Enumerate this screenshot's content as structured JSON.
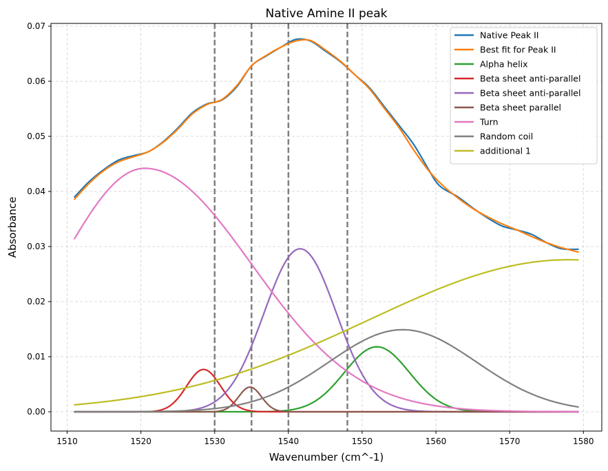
{
  "chart_data": {
    "type": "line",
    "title": "Native Amine II peak",
    "xlabel": "Wavenumber (cm^-1)",
    "ylabel": "Absorbance",
    "xlim": [
      1507.8,
      1582.5
    ],
    "ylim": [
      -0.0035,
      0.0705
    ],
    "xticks": [
      1510,
      1520,
      1530,
      1540,
      1550,
      1560,
      1570,
      1580
    ],
    "yticks": [
      0.0,
      0.01,
      0.02,
      0.03,
      0.04,
      0.05,
      0.06,
      0.07
    ],
    "ytick_labels": [
      "0.00",
      "0.01",
      "0.02",
      "0.03",
      "0.04",
      "0.05",
      "0.06",
      "0.07"
    ],
    "grid": true,
    "legend_position": "top-right",
    "vlines": [
      1530,
      1535,
      1540,
      1548
    ],
    "vline_color": "#7f7f7f",
    "series": [
      {
        "name": "Native Peak II",
        "color": "#1f77b4",
        "x": [
          1511,
          1513,
          1515,
          1517,
          1519,
          1521,
          1523,
          1525,
          1527,
          1529,
          1531,
          1533,
          1535,
          1537,
          1539,
          1541,
          1543,
          1545,
          1547,
          1549,
          1551,
          1553,
          1555,
          1557,
          1559,
          1560,
          1561,
          1563,
          1565,
          1567,
          1569,
          1571,
          1573,
          1575,
          1577,
          1579.3
        ],
        "y": [
          0.039,
          0.0418,
          0.044,
          0.0457,
          0.0465,
          0.0472,
          0.049,
          0.0515,
          0.0543,
          0.0559,
          0.0566,
          0.059,
          0.0628,
          0.0646,
          0.0662,
          0.0676,
          0.0673,
          0.0655,
          0.0636,
          0.0612,
          0.0588,
          0.0554,
          0.052,
          0.0485,
          0.044,
          0.0418,
          0.0405,
          0.039,
          0.037,
          0.0352,
          0.0337,
          0.033,
          0.0322,
          0.0307,
          0.0296,
          0.0295
        ]
      },
      {
        "name": "Best fit for Peak II",
        "color": "#ff7f0e",
        "x": [
          1511,
          1513,
          1515,
          1517,
          1519,
          1521,
          1523,
          1525,
          1527,
          1529,
          1531,
          1533,
          1535,
          1537,
          1539,
          1541,
          1543,
          1545,
          1547,
          1549,
          1551,
          1553,
          1555,
          1557,
          1559,
          1561,
          1563,
          1565,
          1567,
          1569,
          1571,
          1573,
          1575,
          1577,
          1579.3
        ],
        "y": [
          0.0386,
          0.0415,
          0.0438,
          0.0454,
          0.0463,
          0.0472,
          0.0489,
          0.0513,
          0.0541,
          0.0558,
          0.0567,
          0.0592,
          0.0628,
          0.0647,
          0.0662,
          0.0673,
          0.0674,
          0.0657,
          0.0637,
          0.0612,
          0.0586,
          0.0551,
          0.0516,
          0.0475,
          0.0438,
          0.041,
          0.0388,
          0.0369,
          0.0354,
          0.0341,
          0.033,
          0.0318,
          0.0307,
          0.0298,
          0.029
        ]
      },
      {
        "name": "Alpha helix",
        "color": "#2ca02c",
        "model": {
          "a": 0.0118,
          "c": 1552.0,
          "s": 4.4
        },
        "y_peak": 0.0118
      },
      {
        "name": "Beta sheet anti-parallel",
        "color": "#d62728",
        "model": {
          "a": 0.0077,
          "c": 1528.5,
          "s": 2.3
        },
        "y_peak": 0.0077
      },
      {
        "name": "Beta sheet anti-parallel",
        "color": "#9467bd",
        "model": {
          "a": 0.0296,
          "c": 1541.6,
          "s": 4.9
        },
        "y_peak": 0.0296
      },
      {
        "name": "Beta sheet parallel",
        "color": "#8c564b",
        "model": {
          "a": 0.0045,
          "c": 1534.8,
          "s": 1.55
        },
        "y_peak": 0.0045
      },
      {
        "name": "Turn",
        "color": "#e377c2",
        "model": {
          "a": 0.0442,
          "c": 1520.5,
          "sl": 11.5,
          "sr": 14.5
        },
        "y_peak": 0.0442
      },
      {
        "name": "Random coil",
        "color": "#7f7f7f",
        "model": {
          "a": 0.0149,
          "c": 1555.5,
          "s": 10.0
        },
        "y_peak": 0.0149
      },
      {
        "name": "additional 1",
        "color": "#bcbd22",
        "model": {
          "a": 0.0276,
          "c": 1578.0,
          "s": 27.0
        },
        "y_peak": 0.0276
      }
    ]
  }
}
